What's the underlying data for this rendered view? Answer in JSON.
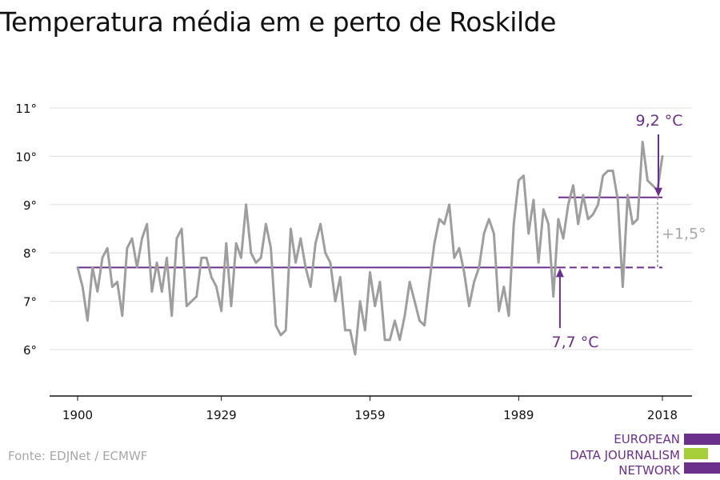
{
  "title": "Temperatura média em e perto de Roskilde",
  "source": "Fonte: EDJNet / ECMWF",
  "logo": {
    "lines": [
      "EUROPEAN",
      "DATA JOURNALISM",
      "NETWORK"
    ],
    "colors": {
      "purple": "#6b2f8c",
      "green": "#a6ce39"
    }
  },
  "colors": {
    "series": "#9e9e9e",
    "average": "#6b2f8c",
    "delta": "#a7a7a7",
    "grid": "#dddddd",
    "axis": "#111111"
  },
  "chart_data": {
    "type": "line",
    "title": "Temperatura média em e perto de Roskilde",
    "xlabel": "",
    "ylabel": "",
    "xlim": [
      1900,
      2018
    ],
    "ylim": [
      5,
      11
    ],
    "x_ticks": [
      1900,
      1929,
      1959,
      1989,
      2018
    ],
    "x_tick_labels": [
      "1900",
      "1929",
      "1959",
      "1989",
      "2018"
    ],
    "y_ticks": [
      6,
      7,
      8,
      9,
      10,
      11
    ],
    "y_tick_labels": [
      "6°",
      "7°",
      "8°",
      "9°",
      "10°",
      "11°"
    ],
    "grid": true,
    "series": [
      {
        "x": [
          1900,
          1901,
          1902,
          1903,
          1904,
          1905,
          1906,
          1907,
          1908,
          1909,
          1910,
          1911,
          1912,
          1913,
          1914,
          1915,
          1916,
          1917,
          1918,
          1919,
          1920,
          1921,
          1922,
          1923,
          1924,
          1925,
          1926,
          1927,
          1928,
          1929,
          1930,
          1931,
          1932,
          1933,
          1934,
          1935,
          1936,
          1937,
          1938,
          1939,
          1940,
          1941,
          1942,
          1943,
          1944,
          1945,
          1946,
          1947,
          1948,
          1949,
          1950,
          1951,
          1952,
          1953,
          1954,
          1955,
          1956,
          1957,
          1958,
          1959,
          1960,
          1961,
          1962,
          1963,
          1964,
          1965,
          1966,
          1967,
          1968,
          1969,
          1970,
          1971,
          1972,
          1973,
          1974,
          1975,
          1976,
          1977,
          1978,
          1979,
          1980,
          1981,
          1982,
          1983,
          1984,
          1985,
          1986,
          1987,
          1988,
          1989,
          1990,
          1991,
          1992,
          1993,
          1994,
          1995,
          1996,
          1997,
          1998,
          1999,
          2000,
          2001,
          2002,
          2003,
          2004,
          2005,
          2006,
          2007,
          2008,
          2009,
          2010,
          2011,
          2012,
          2013,
          2014,
          2015,
          2016,
          2017,
          2018
        ],
        "y": [
          7.7,
          7.3,
          6.6,
          7.7,
          7.2,
          7.9,
          8.1,
          7.3,
          7.4,
          6.7,
          8.1,
          8.3,
          7.7,
          8.3,
          8.6,
          7.2,
          7.8,
          7.2,
          7.9,
          6.7,
          8.3,
          8.5,
          6.9,
          7.0,
          7.1,
          7.9,
          7.9,
          7.5,
          7.3,
          6.8,
          8.2,
          6.9,
          8.2,
          7.9,
          9.0,
          8.0,
          7.8,
          7.9,
          8.6,
          8.1,
          6.5,
          6.3,
          6.4,
          8.5,
          7.8,
          8.3,
          7.7,
          7.3,
          8.2,
          8.6,
          8.0,
          7.8,
          7.0,
          7.5,
          6.4,
          6.4,
          5.9,
          7.0,
          6.4,
          7.6,
          6.9,
          7.4,
          6.2,
          6.2,
          6.6,
          6.2,
          6.7,
          7.4,
          7.0,
          6.6,
          6.5,
          7.4,
          8.2,
          8.7,
          8.6,
          9.0,
          7.9,
          8.1,
          7.6,
          6.9,
          7.4,
          7.7,
          8.4,
          8.7,
          8.4,
          6.8,
          7.3,
          6.7,
          8.6,
          9.5,
          9.6,
          8.4,
          9.1,
          7.8,
          8.9,
          8.6,
          7.1,
          8.7,
          8.3,
          9.0,
          9.4,
          8.6,
          9.2,
          8.7,
          8.8,
          9.0,
          9.6,
          9.7,
          9.7,
          9.1,
          7.3,
          9.2,
          8.6,
          8.7,
          10.3,
          9.5,
          9.4,
          9.3,
          10.0
        ]
      }
    ],
    "annotations": [
      {
        "label": "7,7 °C",
        "value": 7.7,
        "x_start": 1900,
        "x_end": 2018,
        "solid_until": 1997
      },
      {
        "label": "9,2 °C",
        "value": 9.15,
        "x_start": 1997,
        "x_end": 2018
      },
      {
        "label": "+1,5°",
        "from": 7.7,
        "to": 9.15,
        "x": 2018
      }
    ]
  }
}
